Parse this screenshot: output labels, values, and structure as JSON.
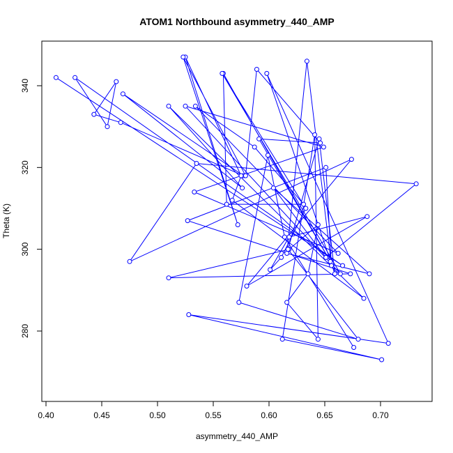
{
  "chart_data": {
    "type": "line",
    "title": "ATOM1 Northbound asymmetry_440_AMP",
    "xlabel": "asymmetry_440_AMP",
    "ylabel": "Theta (K)",
    "xlim": [
      0.4,
      0.73
    ],
    "ylim": [
      270,
      348
    ],
    "xticks": [
      "0.40",
      "0.45",
      "0.50",
      "0.55",
      "0.60",
      "0.65",
      "0.70"
    ],
    "yticks": [
      "280",
      "300",
      "320",
      "340"
    ],
    "xtick_values": [
      0.4,
      0.45,
      0.5,
      0.55,
      0.6,
      0.65,
      0.7
    ],
    "ytick_values": [
      280,
      300,
      320,
      340
    ],
    "grid": false,
    "series": [
      {
        "color": "#0000ff",
        "marker": "open-circle",
        "x": [
          0.409,
          0.666,
          0.426,
          0.455,
          0.463,
          0.443,
          0.467,
          0.577,
          0.469,
          0.576,
          0.51,
          0.685,
          0.567,
          0.575,
          0.525,
          0.572,
          0.523,
          0.579,
          0.589,
          0.646,
          0.591,
          0.655,
          0.559,
          0.562,
          0.631,
          0.587,
          0.534,
          0.662,
          0.533,
          0.649,
          0.525,
          0.664,
          0.558,
          0.633,
          0.611,
          0.601,
          0.618,
          0.688,
          0.58,
          0.674,
          0.475,
          0.535,
          0.732,
          0.651,
          0.604,
          0.69,
          0.616,
          0.634,
          0.656,
          0.651,
          0.527,
          0.673,
          0.51,
          0.618,
          0.644,
          0.635,
          0.616,
          0.644,
          0.641,
          0.612,
          0.701,
          0.528,
          0.707,
          0.598,
          0.659,
          0.645,
          0.617,
          0.68,
          0.573,
          0.599,
          0.614,
          0.676
        ],
        "y": [
          342,
          296,
          342,
          330,
          341,
          333,
          331,
          318,
          338,
          315,
          335,
          288,
          312,
          318,
          347,
          306,
          347,
          318,
          344,
          326,
          327,
          297,
          343,
          311,
          311,
          325,
          335,
          299,
          314,
          325,
          335,
          294,
          343,
          310,
          298,
          295,
          303,
          308,
          291,
          322,
          297,
          321,
          316,
          298,
          315,
          294,
          299,
          346,
          296,
          320,
          307,
          294,
          293,
          300,
          306,
          294,
          287,
          278,
          328,
          278,
          273,
          284,
          277,
          343,
          294,
          327,
          300,
          278,
          287,
          323,
          303,
          276
        ]
      }
    ]
  }
}
